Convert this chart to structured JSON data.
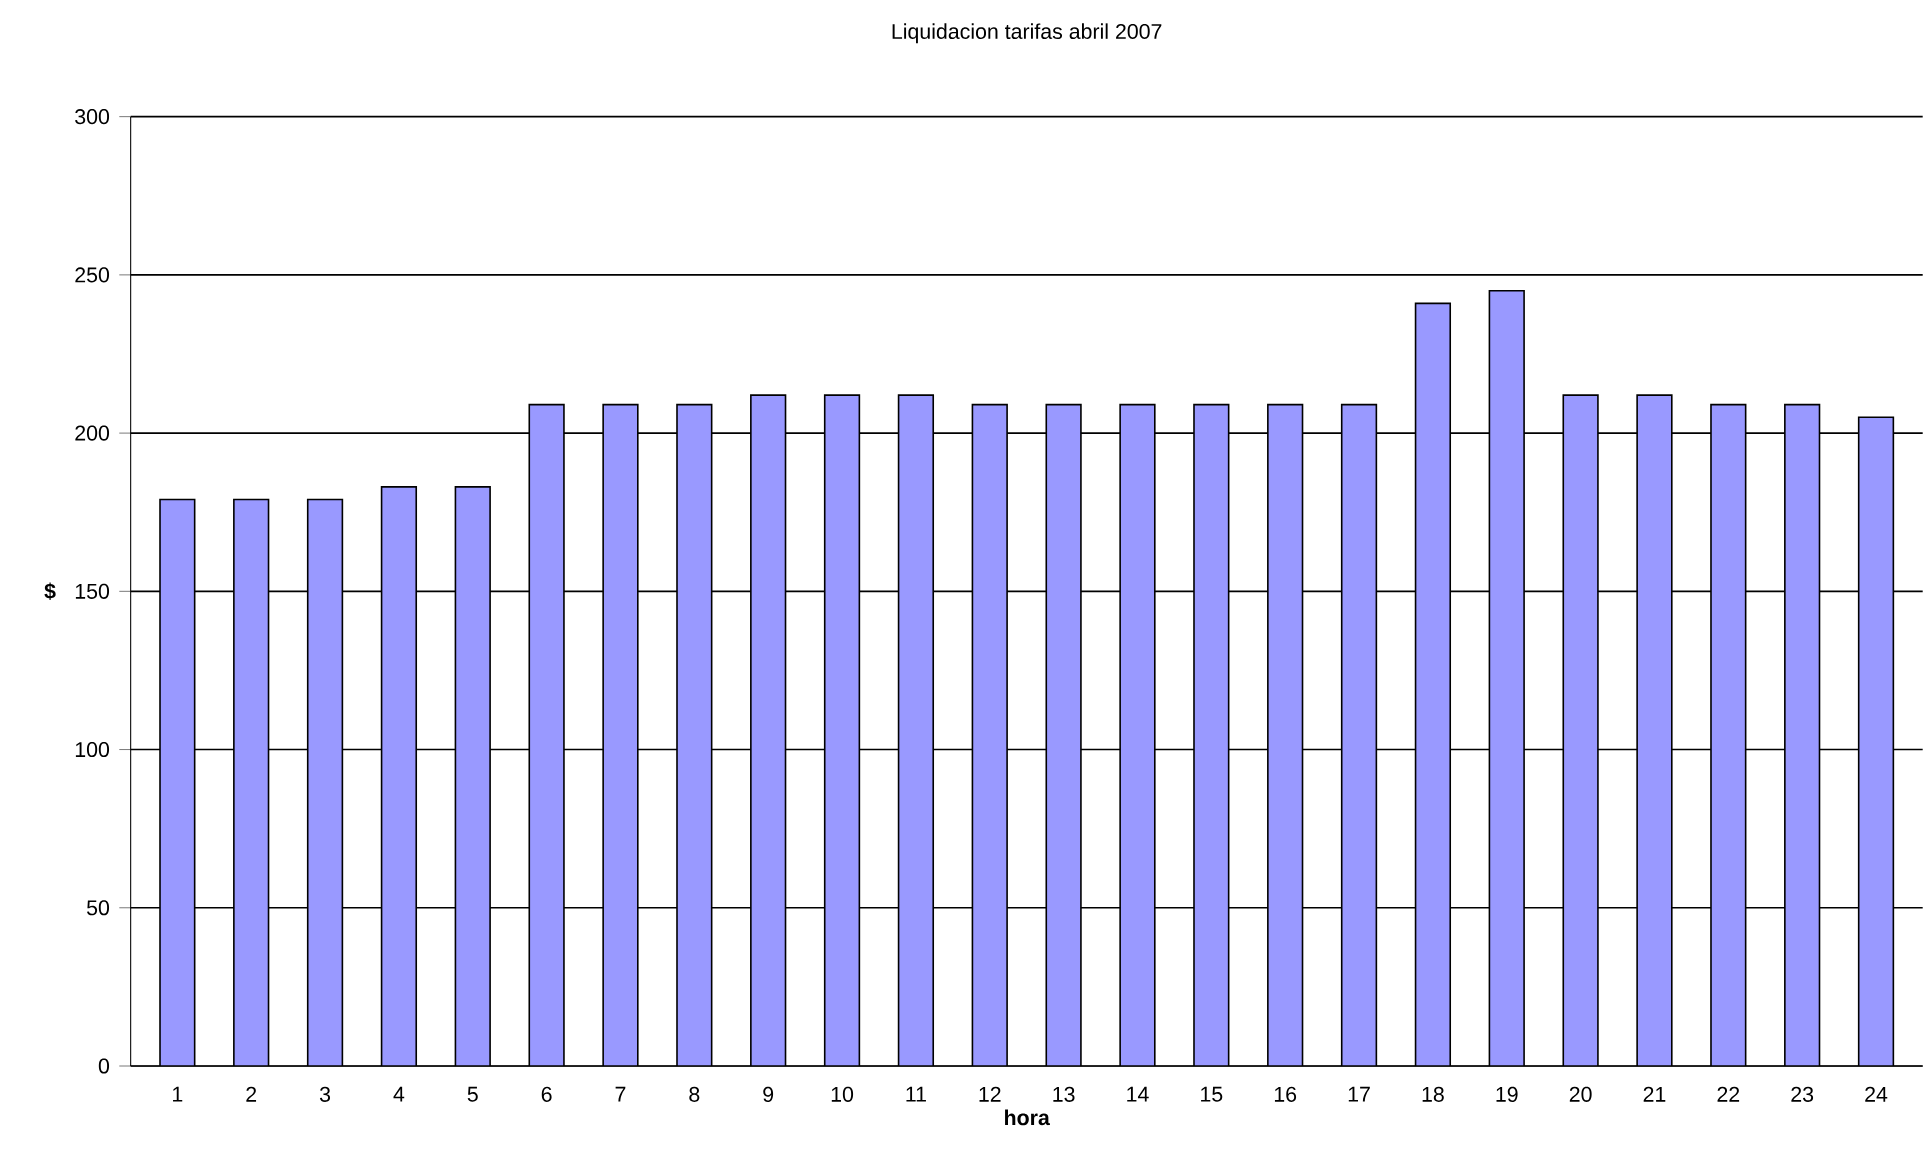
{
  "chart_data": {
    "type": "bar",
    "title": "Liquidacion tarifas abril 2007",
    "xlabel": "hora",
    "ylabel": "$",
    "categories": [
      "1",
      "2",
      "3",
      "4",
      "5",
      "6",
      "7",
      "8",
      "9",
      "10",
      "11",
      "12",
      "13",
      "14",
      "15",
      "16",
      "17",
      "18",
      "19",
      "20",
      "21",
      "22",
      "23",
      "24"
    ],
    "values": [
      179,
      179,
      179,
      183,
      183,
      209,
      209,
      209,
      212,
      212,
      212,
      209,
      209,
      209,
      209,
      209,
      209,
      241,
      245,
      212,
      212,
      209,
      209,
      205
    ],
    "color": "#9999ff",
    "ylim": [
      0,
      300
    ],
    "yticks": [
      0,
      50,
      100,
      150,
      200,
      250,
      300
    ],
    "grid": "y"
  }
}
